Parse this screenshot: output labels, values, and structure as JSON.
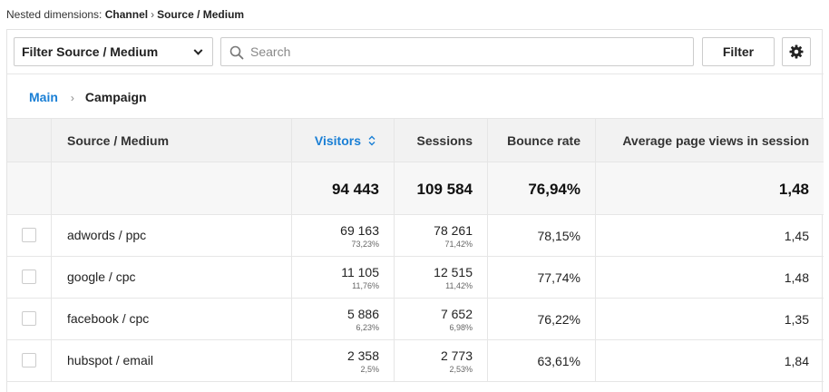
{
  "nested": {
    "prefix": "Nested dimensions:",
    "level1": "Channel",
    "separator": "›",
    "level2": "Source / Medium"
  },
  "toolbar": {
    "filter_select_label": "Filter Source / Medium",
    "search_placeholder": "Search",
    "search_value": "",
    "filter_button_label": "Filter"
  },
  "breadcrumb": {
    "main": "Main",
    "separator": "›",
    "current": "Campaign"
  },
  "table": {
    "columns": {
      "source": "Source / Medium",
      "visitors": "Visitors",
      "sessions": "Sessions",
      "bounce": "Bounce rate",
      "pageviews": "Average page views in session"
    },
    "totals": {
      "visitors": "94 443",
      "sessions": "109 584",
      "bounce": "76,94%",
      "pageviews": "1,48"
    },
    "rows": [
      {
        "source": "adwords / ppc",
        "visitors": "69 163",
        "visitors_pct": "73,23%",
        "sessions": "78 261",
        "sessions_pct": "71,42%",
        "bounce": "78,15%",
        "pageviews": "1,45"
      },
      {
        "source": "google / cpc",
        "visitors": "11 105",
        "visitors_pct": "11,76%",
        "sessions": "12 515",
        "sessions_pct": "11,42%",
        "bounce": "77,74%",
        "pageviews": "1,48"
      },
      {
        "source": "facebook / cpc",
        "visitors": "5 886",
        "visitors_pct": "6,23%",
        "sessions": "7 652",
        "sessions_pct": "6,98%",
        "bounce": "76,22%",
        "pageviews": "1,35"
      },
      {
        "source": "hubspot / email",
        "visitors": "2 358",
        "visitors_pct": "2,5%",
        "sessions": "2 773",
        "sessions_pct": "2,53%",
        "bounce": "63,61%",
        "pageviews": "1,84"
      }
    ]
  },
  "icons": {
    "dropdown": "chevron-down-icon",
    "search": "search-icon",
    "settings": "gear-icon",
    "sort": "sort-icon"
  },
  "colors": {
    "accent": "#1a7fd5",
    "header_bg": "#f2f2f2",
    "border": "#e6e6e6"
  }
}
